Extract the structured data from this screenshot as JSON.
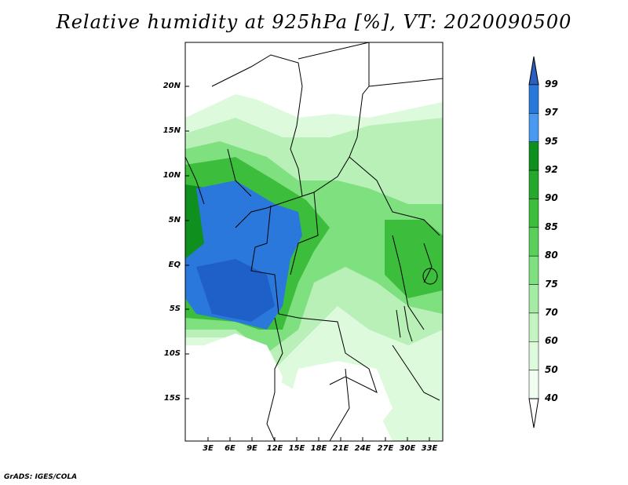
{
  "title": "Relative humidity at 925hPa [%], VT: 2020090500",
  "credit": "GrADS: IGES/COLA",
  "lat_labels": [
    "20N",
    "15N",
    "10N",
    "5N",
    "EQ",
    "5S",
    "10S",
    "15S"
  ],
  "lon_labels": [
    "3E",
    "6E",
    "9E",
    "12E",
    "15E",
    "18E",
    "21E",
    "24E",
    "27E",
    "30E",
    "33E"
  ],
  "colorbar": {
    "levels": [
      "99",
      "97",
      "95",
      "92",
      "90",
      "85",
      "80",
      "75",
      "70",
      "60",
      "50",
      "40"
    ],
    "colors": [
      "#1e5fc8",
      "#2b78dc",
      "#4a99f0",
      "#0f8f1e",
      "#26a82a",
      "#3cbd3c",
      "#5ad05a",
      "#7ee07e",
      "#a4eca4",
      "#c4f4c4",
      "#ddfadd",
      "#f0fdf0"
    ]
  },
  "map": {
    "land_color": "#ffffff",
    "border_color": "#000000"
  }
}
